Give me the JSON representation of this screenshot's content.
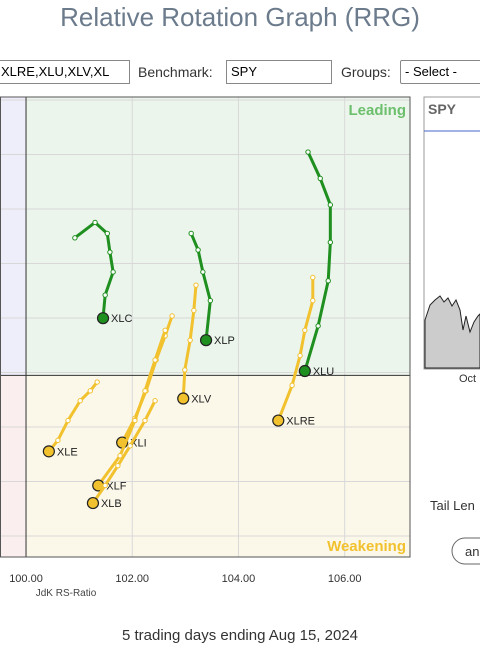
{
  "header": {
    "title": "Relative Rotation Graph (RRG)"
  },
  "controls": {
    "symbols": "XLRE,XLU,XLV,XL",
    "benchmark_label": "Benchmark:",
    "benchmark": "SPY",
    "groups_label": "Groups:",
    "groups": "- Select -"
  },
  "chart_data": {
    "type": "scatter",
    "xlabel": "JdK RS-Ratio",
    "xlim": [
      99.51,
      107.23
    ],
    "ylim": [
      98.35,
      102.53
    ],
    "center": 100,
    "xticks": [
      {
        "value": 100,
        "label": "100.00"
      },
      {
        "value": 102,
        "label": "102.00"
      },
      {
        "value": 104,
        "label": "104.00"
      },
      {
        "value": 106,
        "label": "106.00"
      }
    ],
    "annotations": [
      "Leading",
      "Weakening"
    ],
    "series": [
      {
        "name": "XLC",
        "color": "#1f8f1f",
        "x": [
          100.92,
          101.3,
          101.53,
          101.58,
          101.64,
          101.49,
          101.45
        ],
        "values": [
          101.25,
          101.39,
          101.29,
          101.12,
          100.94,
          100.73,
          100.52
        ]
      },
      {
        "name": "XLP",
        "color": "#1f8f1f",
        "x": [
          103.11,
          103.24,
          103.33,
          103.47,
          103.39
        ],
        "values": [
          101.29,
          101.14,
          100.94,
          100.68,
          100.32
        ]
      },
      {
        "name": "XLU",
        "color": "#1f8f1f",
        "x": [
          105.31,
          105.54,
          105.73,
          105.73,
          105.69,
          105.5,
          105.25
        ],
        "values": [
          102.03,
          101.79,
          101.55,
          101.21,
          100.86,
          100.45,
          100.04
        ]
      },
      {
        "name": "XLRE",
        "color": "#f2c12e",
        "x": [
          105.4,
          105.4,
          105.25,
          105.16,
          105.01,
          104.75
        ],
        "values": [
          100.89,
          100.68,
          100.41,
          100.18,
          99.91,
          99.59
        ]
      },
      {
        "name": "XLV",
        "color": "#f2c12e",
        "x": [
          103.2,
          103.16,
          103.09,
          102.99,
          102.96
        ],
        "values": [
          100.82,
          100.59,
          100.32,
          100.05,
          99.79
        ]
      },
      {
        "name": "XLI",
        "color": "#f2c12e",
        "x": [
          102.75,
          102.62,
          102.45,
          102.26,
          102.05,
          101.81
        ],
        "values": [
          100.54,
          100.36,
          100.14,
          99.86,
          99.61,
          99.39
        ]
      },
      {
        "name": "XLE",
        "color": "#f2c12e",
        "x": [
          101.34,
          101.21,
          101.02,
          100.79,
          100.6,
          100.43
        ],
        "values": [
          99.94,
          99.86,
          99.77,
          99.59,
          99.41,
          99.31
        ]
      },
      {
        "name": "XLF",
        "color": "#f2c12e",
        "x": [
          102.62,
          102.43,
          102.24,
          102.05,
          101.77,
          101.36
        ],
        "values": [
          100.41,
          100.14,
          99.86,
          99.59,
          99.27,
          99.0
        ]
      },
      {
        "name": "XLB",
        "color": "#f2c12e",
        "x": [
          102.43,
          102.24,
          101.96,
          101.73,
          101.49,
          101.26
        ],
        "values": [
          99.77,
          99.59,
          99.36,
          99.18,
          99.0,
          98.84
        ]
      }
    ]
  },
  "side_panel": {
    "symbol": "SPY",
    "month": "Oct",
    "tail_label": "Tail Len",
    "button": "an"
  },
  "footer": "5 trading days ending Aug 15, 2024"
}
